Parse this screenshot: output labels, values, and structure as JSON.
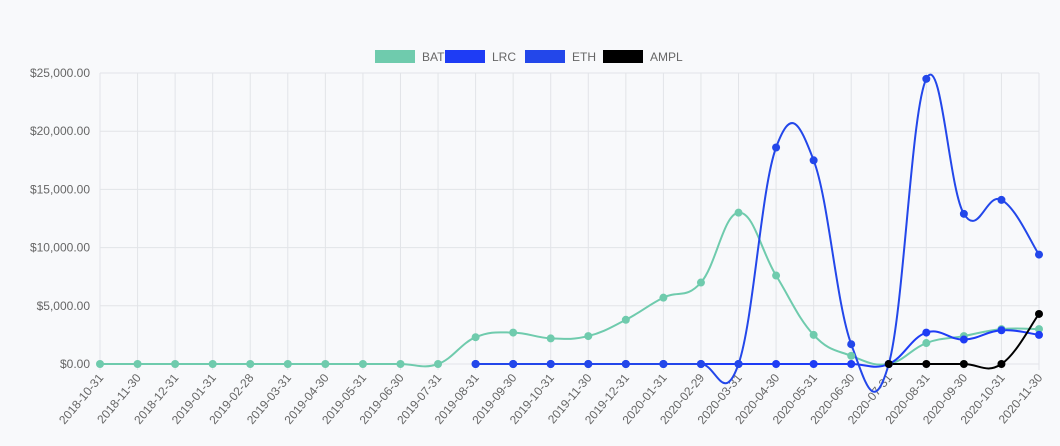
{
  "chart_data": {
    "type": "line",
    "categories": [
      "2018-10-31",
      "2018-11-30",
      "2018-12-31",
      "2019-01-31",
      "2019-02-28",
      "2019-03-31",
      "2019-04-30",
      "2019-05-31",
      "2019-06-30",
      "2019-07-31",
      "2019-08-31",
      "2019-09-30",
      "2019-10-31",
      "2019-11-30",
      "2019-12-31",
      "2020-01-31",
      "2020-02-29",
      "2020-03-31",
      "2020-04-30",
      "2020-05-31",
      "2020-06-30",
      "2020-07-31",
      "2020-08-31",
      "2020-09-30",
      "2020-10-31",
      "2020-11-30"
    ],
    "series": [
      {
        "name": "BAT",
        "color": "#6fcbad",
        "values": [
          0,
          0,
          0,
          0,
          0,
          0,
          0,
          0,
          0,
          0,
          2300,
          2700,
          2200,
          2400,
          3800,
          5700,
          7000,
          13000,
          7600,
          2500,
          700,
          0,
          1800,
          2400,
          3000,
          3000
        ]
      },
      {
        "name": "LRC",
        "color": "#1e3cf5",
        "values": [
          null,
          null,
          null,
          null,
          null,
          null,
          null,
          null,
          null,
          null,
          0,
          0,
          0,
          0,
          0,
          0,
          0,
          0,
          0,
          0,
          0,
          0,
          2700,
          2100,
          2900,
          2500
        ]
      },
      {
        "name": "ETH",
        "color": "#2347ea",
        "values": [
          null,
          null,
          null,
          null,
          null,
          null,
          null,
          null,
          null,
          null,
          0,
          0,
          0,
          0,
          0,
          0,
          0,
          0,
          18600,
          17500,
          1700,
          0,
          24500,
          12900,
          14100,
          9400
        ]
      },
      {
        "name": "AMPL",
        "color": "#000000",
        "values": [
          null,
          null,
          null,
          null,
          null,
          null,
          null,
          null,
          null,
          null,
          null,
          null,
          null,
          null,
          null,
          null,
          null,
          null,
          null,
          null,
          null,
          0,
          0,
          0,
          0,
          4300
        ]
      }
    ],
    "ylim": [
      0,
      25000
    ],
    "yticks": [
      {
        "value": 0,
        "label": "$0.00"
      },
      {
        "value": 5000,
        "label": "$5,000.00"
      },
      {
        "value": 10000,
        "label": "$10,000.00"
      },
      {
        "value": 15000,
        "label": "$15,000.00"
      },
      {
        "value": 20000,
        "label": "$20,000.00"
      },
      {
        "value": 25000,
        "label": "$25,000.00"
      }
    ],
    "grid": true,
    "legend": "top"
  }
}
